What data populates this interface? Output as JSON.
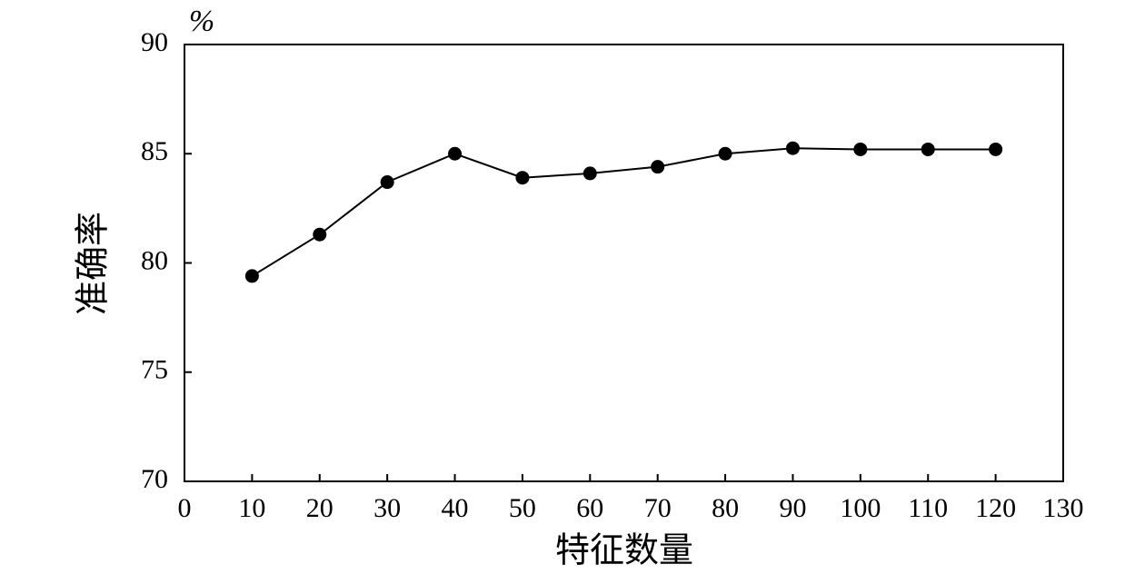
{
  "chart_data": {
    "type": "line",
    "x_label": "特征数量",
    "y_label": "准确率",
    "y_unit": "%",
    "x": [
      10,
      20,
      30,
      40,
      50,
      60,
      70,
      80,
      90,
      100,
      110,
      120
    ],
    "series": [
      {
        "color": "#000000",
        "values": [
          79.4,
          81.3,
          83.7,
          85.0,
          83.9,
          84.1,
          84.4,
          85.0,
          85.25,
          85.2,
          85.2,
          85.2
        ]
      }
    ],
    "xlim": [
      0,
      130
    ],
    "xticks": [
      0,
      10,
      20,
      30,
      40,
      50,
      60,
      70,
      80,
      90,
      100,
      110,
      120,
      130
    ],
    "ylim": [
      70,
      90
    ],
    "yticks": [
      70,
      75,
      80,
      85,
      90
    ],
    "grid": false,
    "markers": true
  }
}
